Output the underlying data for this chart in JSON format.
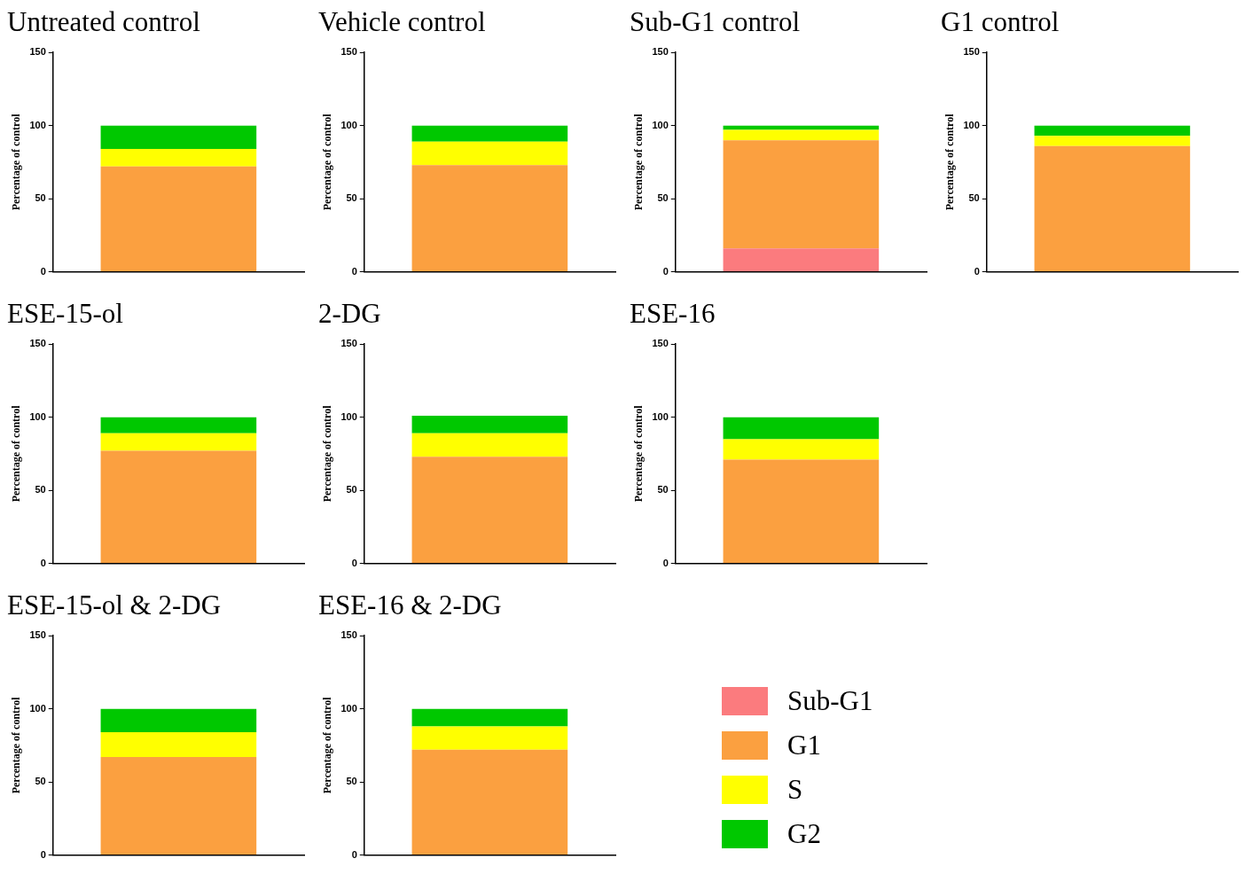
{
  "chart_data": [
    {
      "type": "bar",
      "title": "Untreated control",
      "ylabel": "Percentage of control",
      "categories": [
        null
      ],
      "stacked": true,
      "ylim": [
        0,
        150
      ],
      "yticks": [
        0,
        50,
        100,
        150
      ],
      "grid": false,
      "legend": false,
      "series": [
        {
          "color": "#fba040",
          "values": [
            72
          ]
        },
        {
          "color": "#ffff00",
          "values": [
            12
          ]
        },
        {
          "color": "#00c800",
          "values": [
            16
          ]
        }
      ]
    },
    {
      "type": "bar",
      "title": "Vehicle control",
      "ylabel": "Percentage of control",
      "categories": [
        null
      ],
      "stacked": true,
      "ylim": [
        0,
        150
      ],
      "yticks": [
        0,
        50,
        100,
        150
      ],
      "grid": false,
      "legend": false,
      "series": [
        {
          "color": "#fba040",
          "values": [
            73
          ]
        },
        {
          "color": "#ffff00",
          "values": [
            16
          ]
        },
        {
          "color": "#00c800",
          "values": [
            11
          ]
        }
      ]
    },
    {
      "type": "bar",
      "title": "Sub-G1 control",
      "ylabel": "Percentage of control",
      "categories": [
        null
      ],
      "stacked": true,
      "ylim": [
        0,
        150
      ],
      "yticks": [
        0,
        50,
        100,
        150
      ],
      "grid": false,
      "legend": false,
      "series": [
        {
          "color": "#fb7b7e",
          "values": [
            16
          ]
        },
        {
          "color": "#fba040",
          "values": [
            74
          ]
        },
        {
          "color": "#ffff00",
          "values": [
            7
          ]
        },
        {
          "color": "#00c800",
          "values": [
            3
          ]
        }
      ]
    },
    {
      "type": "bar",
      "title": "G1 control",
      "ylabel": "Percentage of control",
      "categories": [
        null
      ],
      "stacked": true,
      "ylim": [
        0,
        150
      ],
      "yticks": [
        0,
        50,
        100,
        150
      ],
      "grid": false,
      "legend": false,
      "series": [
        {
          "color": "#fba040",
          "values": [
            86
          ]
        },
        {
          "color": "#ffff00",
          "values": [
            7
          ]
        },
        {
          "color": "#00c800",
          "values": [
            7
          ]
        }
      ]
    },
    {
      "type": "bar",
      "title": "ESE-15-ol",
      "ylabel": "Percentage of control",
      "categories": [
        null
      ],
      "stacked": true,
      "ylim": [
        0,
        150
      ],
      "yticks": [
        0,
        50,
        100,
        150
      ],
      "grid": false,
      "legend": false,
      "series": [
        {
          "color": "#fba040",
          "values": [
            77
          ]
        },
        {
          "color": "#ffff00",
          "values": [
            12
          ]
        },
        {
          "color": "#00c800",
          "values": [
            11
          ]
        }
      ]
    },
    {
      "type": "bar",
      "title": "2-DG",
      "ylabel": "Percentage of control",
      "categories": [
        null
      ],
      "stacked": true,
      "ylim": [
        0,
        150
      ],
      "yticks": [
        0,
        50,
        100,
        150
      ],
      "grid": false,
      "legend": false,
      "series": [
        {
          "color": "#fba040",
          "values": [
            73
          ]
        },
        {
          "color": "#ffff00",
          "values": [
            16
          ]
        },
        {
          "color": "#00c800",
          "values": [
            12
          ]
        }
      ]
    },
    {
      "type": "bar",
      "title": "ESE-16",
      "ylabel": "Percentage of control",
      "categories": [
        null
      ],
      "stacked": true,
      "ylim": [
        0,
        150
      ],
      "yticks": [
        0,
        50,
        100,
        150
      ],
      "grid": false,
      "legend": false,
      "series": [
        {
          "color": "#fba040",
          "values": [
            71
          ]
        },
        {
          "color": "#ffff00",
          "values": [
            14
          ]
        },
        {
          "color": "#00c800",
          "values": [
            15
          ]
        }
      ]
    },
    {
      "type": "bar",
      "title": "ESE-15-ol & 2-DG",
      "ylabel": "Percentage of control",
      "categories": [
        null
      ],
      "stacked": true,
      "ylim": [
        0,
        150
      ],
      "yticks": [
        0,
        50,
        100,
        150
      ],
      "grid": false,
      "legend": false,
      "series": [
        {
          "color": "#fba040",
          "values": [
            67
          ]
        },
        {
          "color": "#ffff00",
          "values": [
            17
          ]
        },
        {
          "color": "#00c800",
          "values": [
            16
          ]
        }
      ]
    },
    {
      "type": "bar",
      "title": "ESE-16 & 2-DG",
      "ylabel": "Percentage of control",
      "categories": [
        null
      ],
      "stacked": true,
      "ylim": [
        0,
        150
      ],
      "yticks": [
        0,
        50,
        100,
        150
      ],
      "grid": false,
      "legend": "right",
      "series": [
        {
          "name": "Sub-G1",
          "color": "#fb7b7e",
          "values": [
            0
          ]
        },
        {
          "name": "G1",
          "color": "#fba040",
          "values": [
            72
          ]
        },
        {
          "name": "S",
          "color": "#ffff00",
          "values": [
            16
          ]
        },
        {
          "name": "G2",
          "color": "#00c800",
          "values": [
            12
          ]
        }
      ]
    }
  ]
}
